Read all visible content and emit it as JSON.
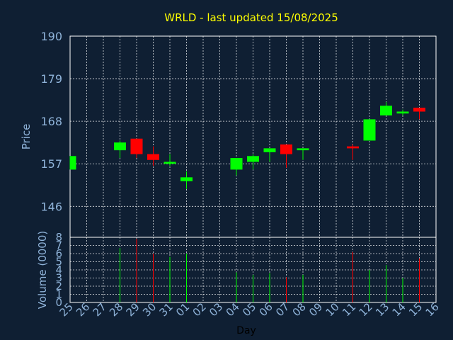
{
  "chart_data": {
    "type": "candlestick",
    "title": "WRLD - last updated 15/08/2025",
    "xlabel": "Day",
    "ylabel": "Price",
    "volume_label": "Volume (0000)",
    "x_ticks": [
      "25",
      "26",
      "27",
      "28",
      "29",
      "30",
      "31",
      "01",
      "02",
      "03",
      "04",
      "05",
      "06",
      "07",
      "08",
      "09",
      "10",
      "11",
      "12",
      "13",
      "14",
      "15",
      "16"
    ],
    "y_ticks": [
      146,
      157,
      168,
      179,
      190
    ],
    "ylim": [
      138,
      190
    ],
    "volume_ticks": [
      0,
      1,
      2,
      3,
      4,
      5,
      6,
      7,
      8
    ],
    "volume_ylim": [
      0,
      8
    ],
    "grid": true,
    "colors": {
      "up": "#00ff00",
      "down": "#ff0000",
      "title": "#ffff00",
      "text": "#8fb3d9",
      "background": "#0f1f33"
    },
    "candles": [
      {
        "day": "25",
        "open": 155.5,
        "close": 159.0,
        "high": 159.0,
        "low": 155.5,
        "volume": 0
      },
      {
        "day": "28",
        "open": 160.5,
        "close": 162.5,
        "high": 163.0,
        "low": 158.5,
        "volume": 6.7
      },
      {
        "day": "29",
        "open": 163.5,
        "close": 159.5,
        "high": 163.5,
        "low": 158.5,
        "volume": 7.8
      },
      {
        "day": "30",
        "open": 159.5,
        "close": 158.0,
        "high": 161.5,
        "low": 156.5,
        "volume": 6.0
      },
      {
        "day": "31",
        "open": 157.0,
        "close": 157.5,
        "high": 159.5,
        "low": 156.5,
        "volume": 5.6
      },
      {
        "day": "01",
        "open": 152.5,
        "close": 153.5,
        "high": 155.0,
        "low": 150.5,
        "volume": 6.0
      },
      {
        "day": "04",
        "open": 155.5,
        "close": 158.5,
        "high": 158.5,
        "low": 154.0,
        "volume": 3.7
      },
      {
        "day": "05",
        "open": 157.5,
        "close": 159.0,
        "high": 159.5,
        "low": 155.5,
        "volume": 3.4
      },
      {
        "day": "06",
        "open": 160.0,
        "close": 161.0,
        "high": 161.0,
        "low": 157.5,
        "volume": 3.6
      },
      {
        "day": "07",
        "open": 162.0,
        "close": 159.5,
        "high": 162.0,
        "low": 156.0,
        "volume": 3.1
      },
      {
        "day": "08",
        "open": 160.5,
        "close": 161.0,
        "high": 161.0,
        "low": 158.0,
        "volume": 3.4
      },
      {
        "day": "11",
        "open": 161.5,
        "close": 161.0,
        "high": 162.0,
        "low": 158.0,
        "volume": 6.2
      },
      {
        "day": "12",
        "open": 163.0,
        "close": 168.5,
        "high": 168.5,
        "low": 163.0,
        "volume": 4.0
      },
      {
        "day": "13",
        "open": 169.5,
        "close": 172.0,
        "high": 173.0,
        "low": 169.5,
        "volume": 4.6
      },
      {
        "day": "14",
        "open": 170.0,
        "close": 170.5,
        "high": 171.0,
        "low": 169.5,
        "volume": 3.0
      },
      {
        "day": "15",
        "open": 171.5,
        "close": 170.5,
        "high": 171.5,
        "low": 168.5,
        "volume": 5.4
      }
    ]
  }
}
